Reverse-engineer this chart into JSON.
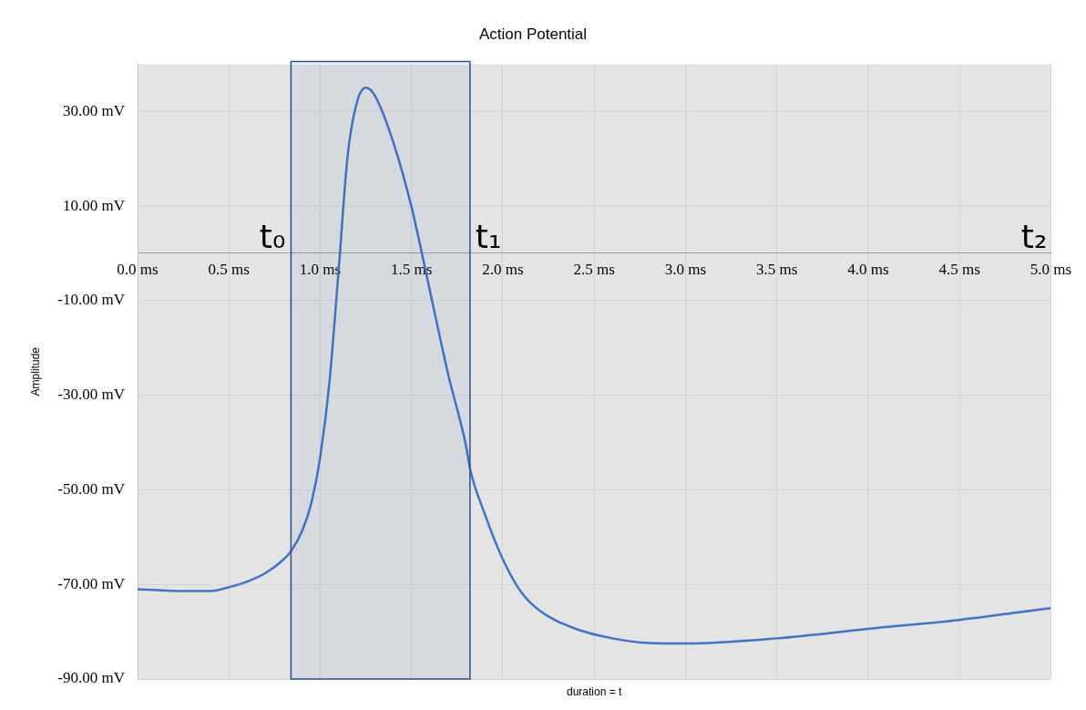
{
  "chart_data": {
    "type": "line",
    "title": "Action Potential",
    "xlabel": "duration = t",
    "ylabel": "Amplitude",
    "x": [
      0,
      0.25,
      0.4,
      0.5,
      0.6,
      0.7,
      0.8,
      0.84,
      0.9,
      0.95,
      1.0,
      1.05,
      1.1,
      1.15,
      1.2,
      1.25,
      1.3,
      1.4,
      1.5,
      1.6,
      1.7,
      1.8,
      1.82,
      1.9,
      2.0,
      2.1,
      2.2,
      2.4,
      2.6,
      2.8,
      3.0,
      3.5,
      4.0,
      4.5,
      5.0
    ],
    "series": [
      {
        "color": "#4472c4",
        "values": [
          -71,
          -71.4,
          -71.4,
          -70.6,
          -69.4,
          -67.6,
          -64.7,
          -63,
          -58.8,
          -53,
          -43,
          -27.5,
          -4,
          20.6,
          31.8,
          35,
          33.3,
          23.5,
          9.8,
          -7.8,
          -25.5,
          -41,
          -45.5,
          -55,
          -64.7,
          -71.6,
          -75.5,
          -79.4,
          -81.4,
          -82.4,
          -82.5,
          -81.4,
          -79.4,
          -77.5,
          -75
        ]
      }
    ],
    "xlim": [
      0,
      5
    ],
    "xticks": [
      {
        "value": 0,
        "label": "0.0 ms"
      },
      {
        "value": 0.5,
        "label": "0.5 ms"
      },
      {
        "value": 1,
        "label": "1.0 ms"
      },
      {
        "value": 1.5,
        "label": "1.5 ms"
      },
      {
        "value": 2,
        "label": "2.0 ms"
      },
      {
        "value": 2.5,
        "label": "2.5 ms"
      },
      {
        "value": 3,
        "label": "3.0 ms"
      },
      {
        "value": 3.5,
        "label": "3.5 ms"
      },
      {
        "value": 4,
        "label": "4.0 ms"
      },
      {
        "value": 4.5,
        "label": "4.5 ms"
      },
      {
        "value": 5,
        "label": "5.0 ms"
      }
    ],
    "ylim": [
      -90,
      40
    ],
    "yticks": [
      {
        "value": 30,
        "label": "30.00 mV"
      },
      {
        "value": 10,
        "label": "10.00 mV"
      },
      {
        "value": -10,
        "label": "-10.00 mV"
      },
      {
        "value": -30,
        "label": "-30.00 mV"
      },
      {
        "value": -50,
        "label": "-50.00 mV"
      },
      {
        "value": -70,
        "label": "-70.00 mV"
      },
      {
        "value": -90,
        "label": "-90.00 mV"
      }
    ],
    "bands": [
      {
        "axis": "x",
        "from": 0.84,
        "to": 1.82,
        "color": "#2f4f8f"
      }
    ],
    "annotations": [
      {
        "text": "t₀",
        "x": 0.84,
        "y": 0
      },
      {
        "text": "t₁",
        "x": 1.82,
        "y": 0
      },
      "t₂"
    ],
    "grid": true,
    "legend": false,
    "marker": "none",
    "line_style": "solid"
  }
}
